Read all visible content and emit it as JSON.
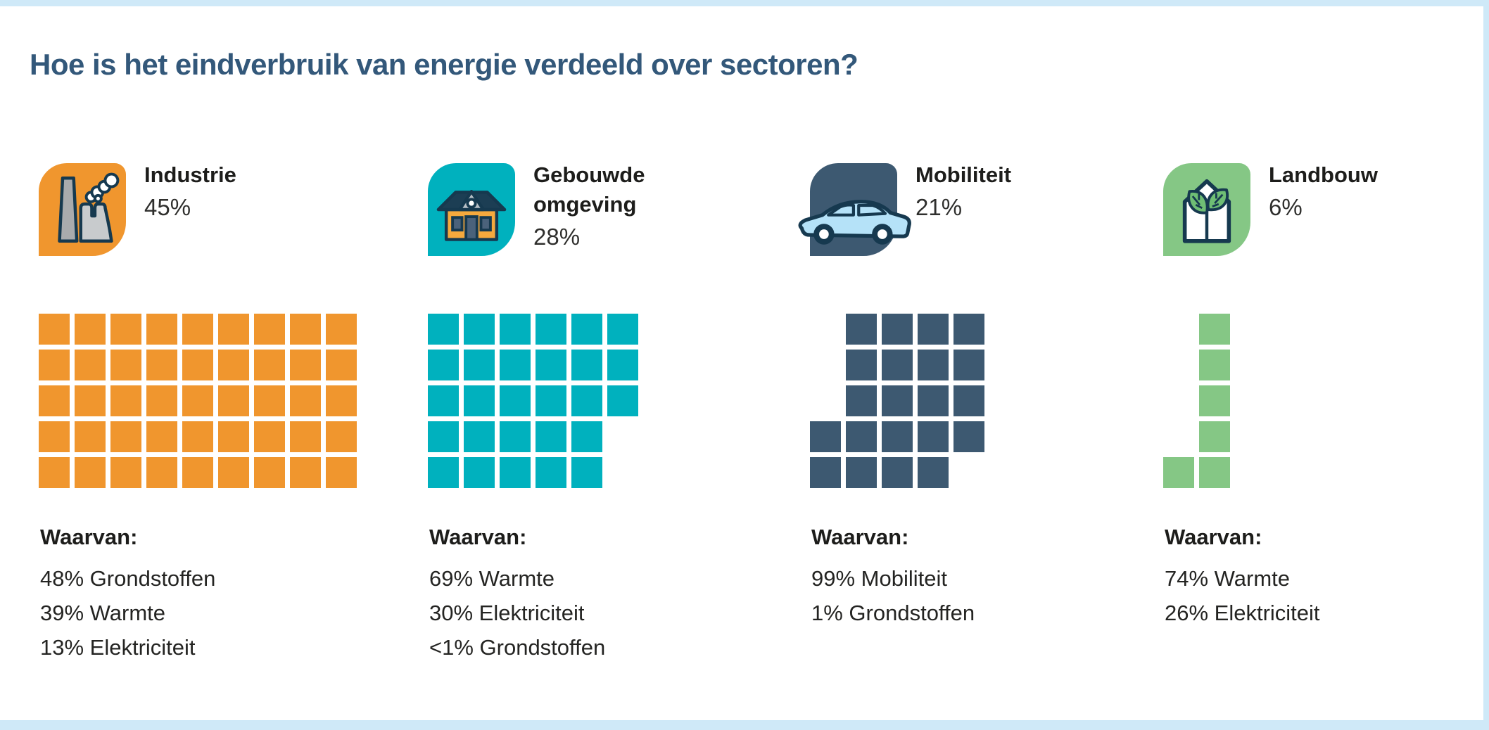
{
  "page": {
    "title": "Hoe is het eindverbruik van energie verdeeld over sectoren?",
    "title_color": "#33587a",
    "frame_color": "#cfe9f8",
    "background": "#ffffff"
  },
  "chart_data": {
    "type": "pie",
    "variant": "waffle-grid (1 square = 1%)",
    "title": "Hoe is het eindverbruik van energie verdeeld over sectoren?",
    "categories": [
      "Industrie",
      "Gebouwde omgeving",
      "Mobiliteit",
      "Landbouw"
    ],
    "values": [
      45,
      28,
      21,
      6
    ],
    "unit": "%",
    "colors": [
      "#f0962e",
      "#00b1be",
      "#3d5971",
      "#85c785"
    ],
    "legend_position": "none",
    "grid": false,
    "breakdowns": [
      {
        "sector": "Industrie",
        "parts": [
          {
            "label": "Grondstoffen",
            "value": "48%"
          },
          {
            "label": "Warmte",
            "value": "39%"
          },
          {
            "label": "Elektriciteit",
            "value": "13%"
          }
        ]
      },
      {
        "sector": "Gebouwde omgeving",
        "parts": [
          {
            "label": "Warmte",
            "value": "69%"
          },
          {
            "label": "Elektriciteit",
            "value": "30%"
          },
          {
            "label": "Grondstoffen",
            "value": "<1%"
          }
        ]
      },
      {
        "sector": "Mobiliteit",
        "parts": [
          {
            "label": "Mobiliteit",
            "value": "99%"
          },
          {
            "label": "Grondstoffen",
            "value": "1%"
          }
        ]
      },
      {
        "sector": "Landbouw",
        "parts": [
          {
            "label": "Warmte",
            "value": "74%"
          },
          {
            "label": "Elektriciteit",
            "value": "26%"
          }
        ]
      }
    ]
  },
  "sectors": [
    {
      "name": "Industrie",
      "percent": "45%",
      "icon": "factory-icon",
      "color": "#f0962e",
      "waffle": {
        "cols": 9,
        "color": "#f0962e",
        "pattern": [
          "111111111",
          "111111111",
          "111111111",
          "111111111",
          "111111111"
        ]
      },
      "breakdown_title": "Waarvan:",
      "breakdown": [
        "48% Grondstoffen",
        "39% Warmte",
        "13% Elektriciteit"
      ]
    },
    {
      "name": "Gebouwde omgeving",
      "percent": "28%",
      "icon": "house-icon",
      "color": "#00b1be",
      "waffle": {
        "cols": 6,
        "color": "#00b1be",
        "pattern": [
          "111111",
          "111111",
          "111111",
          "111110",
          "111110"
        ]
      },
      "breakdown_title": "Waarvan:",
      "breakdown": [
        "69% Warmte",
        "30% Elektriciteit",
        "<1% Grondstoffen"
      ]
    },
    {
      "name": "Mobiliteit",
      "percent": "21%",
      "icon": "car-icon",
      "color": "#3d5971",
      "waffle": {
        "cols": 5,
        "color": "#3d5971",
        "pattern": [
          "01111",
          "01111",
          "01111",
          "11111",
          "11110"
        ]
      },
      "breakdown_title": "Waarvan:",
      "breakdown": [
        "99% Mobiliteit",
        "1% Grondstoffen"
      ]
    },
    {
      "name": "Landbouw",
      "percent": "6%",
      "icon": "greenhouse-icon",
      "color": "#85c785",
      "waffle": {
        "cols": 2,
        "color": "#85c785",
        "pattern": [
          "01",
          "01",
          "01",
          "01",
          "11"
        ]
      },
      "breakdown_title": "Waarvan:",
      "breakdown": [
        "74% Warmte",
        "26% Elektriciteit"
      ]
    }
  ]
}
